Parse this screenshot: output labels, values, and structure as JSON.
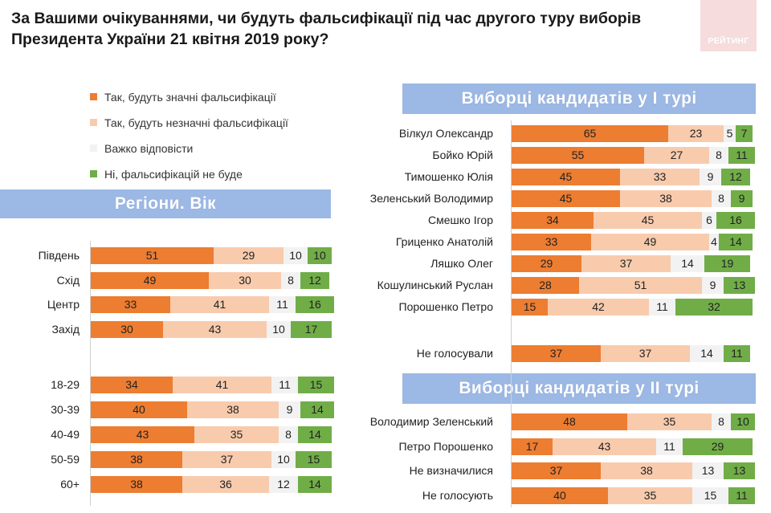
{
  "title": "За Вашими очікуваннями, чи будуть фальсифікації під час другого туру виборів Президента України 21 квітня 2019 року?",
  "logo_text": "РЕЙТИНГ",
  "colors": {
    "significant": "#ed7d31",
    "insignificant": "#f8cbad",
    "hard": "#f2f2f2",
    "none": "#70ad47",
    "banner": "#9cb8e4"
  },
  "legend": [
    {
      "key": "significant",
      "label": "Так, будуть значні фальсифікації"
    },
    {
      "key": "insignificant",
      "label": "Так, будуть незначні фальсифікації"
    },
    {
      "key": "hard",
      "label": "Важко відповісти"
    },
    {
      "key": "none",
      "label": "Ні, фальсифікацій не буде"
    }
  ],
  "banners": {
    "regions": "Регіони. Вік",
    "round1": "Виборці кандидатів у І турі",
    "round2": "Виборці кандидатів у ІІ турі"
  },
  "chart_data": {
    "type": "bar",
    "stacked": true,
    "orientation": "horizontal",
    "unit": "%",
    "series_order": [
      "Так, будуть значні фальсифікації",
      "Так, будуть незначні фальсифікації",
      "Важко відповісти",
      "Ні, фальсифікацій не буде"
    ],
    "groups": {
      "regions": [
        {
          "label": "Південь",
          "values": [
            51,
            29,
            10,
            10
          ]
        },
        {
          "label": "Схід",
          "values": [
            49,
            30,
            8,
            12
          ]
        },
        {
          "label": "Центр",
          "values": [
            33,
            41,
            11,
            16
          ]
        },
        {
          "label": "Захід",
          "values": [
            30,
            43,
            10,
            17
          ]
        }
      ],
      "age": [
        {
          "label": "18-29",
          "values": [
            34,
            41,
            11,
            15
          ]
        },
        {
          "label": "30-39",
          "values": [
            40,
            38,
            9,
            14
          ]
        },
        {
          "label": "40-49",
          "values": [
            43,
            35,
            8,
            14
          ]
        },
        {
          "label": "50-59",
          "values": [
            38,
            37,
            10,
            15
          ]
        },
        {
          "label": "60+",
          "values": [
            38,
            36,
            12,
            14
          ]
        }
      ],
      "round1": [
        {
          "label": "Вілкул Олександр",
          "values": [
            65,
            23,
            5,
            7
          ]
        },
        {
          "label": "Бойко Юрій",
          "values": [
            55,
            27,
            8,
            11
          ]
        },
        {
          "label": "Тимошенко Юлія",
          "values": [
            45,
            33,
            9,
            12
          ]
        },
        {
          "label": "Зеленський Володимир",
          "values": [
            45,
            38,
            8,
            9
          ]
        },
        {
          "label": "Смешко Ігор",
          "values": [
            34,
            45,
            6,
            16
          ]
        },
        {
          "label": "Гриценко Анатолій",
          "values": [
            33,
            49,
            4,
            14
          ]
        },
        {
          "label": "Ляшко Олег",
          "values": [
            29,
            37,
            14,
            19
          ]
        },
        {
          "label": "Кошулинський Руслан",
          "values": [
            28,
            51,
            9,
            13
          ]
        },
        {
          "label": "Порошенко Петро",
          "values": [
            15,
            42,
            11,
            32
          ]
        }
      ],
      "round1_nonvoters": [
        {
          "label": "Не голосували",
          "values": [
            37,
            37,
            14,
            11
          ]
        }
      ],
      "round2": [
        {
          "label": "Володимир Зеленський",
          "values": [
            48,
            35,
            8,
            10
          ]
        },
        {
          "label": "Петро Порошенко",
          "values": [
            17,
            43,
            11,
            29
          ]
        },
        {
          "label": "Не визначилися",
          "values": [
            37,
            38,
            13,
            13
          ]
        },
        {
          "label": "Не голосують",
          "values": [
            40,
            35,
            15,
            11
          ]
        }
      ]
    }
  }
}
